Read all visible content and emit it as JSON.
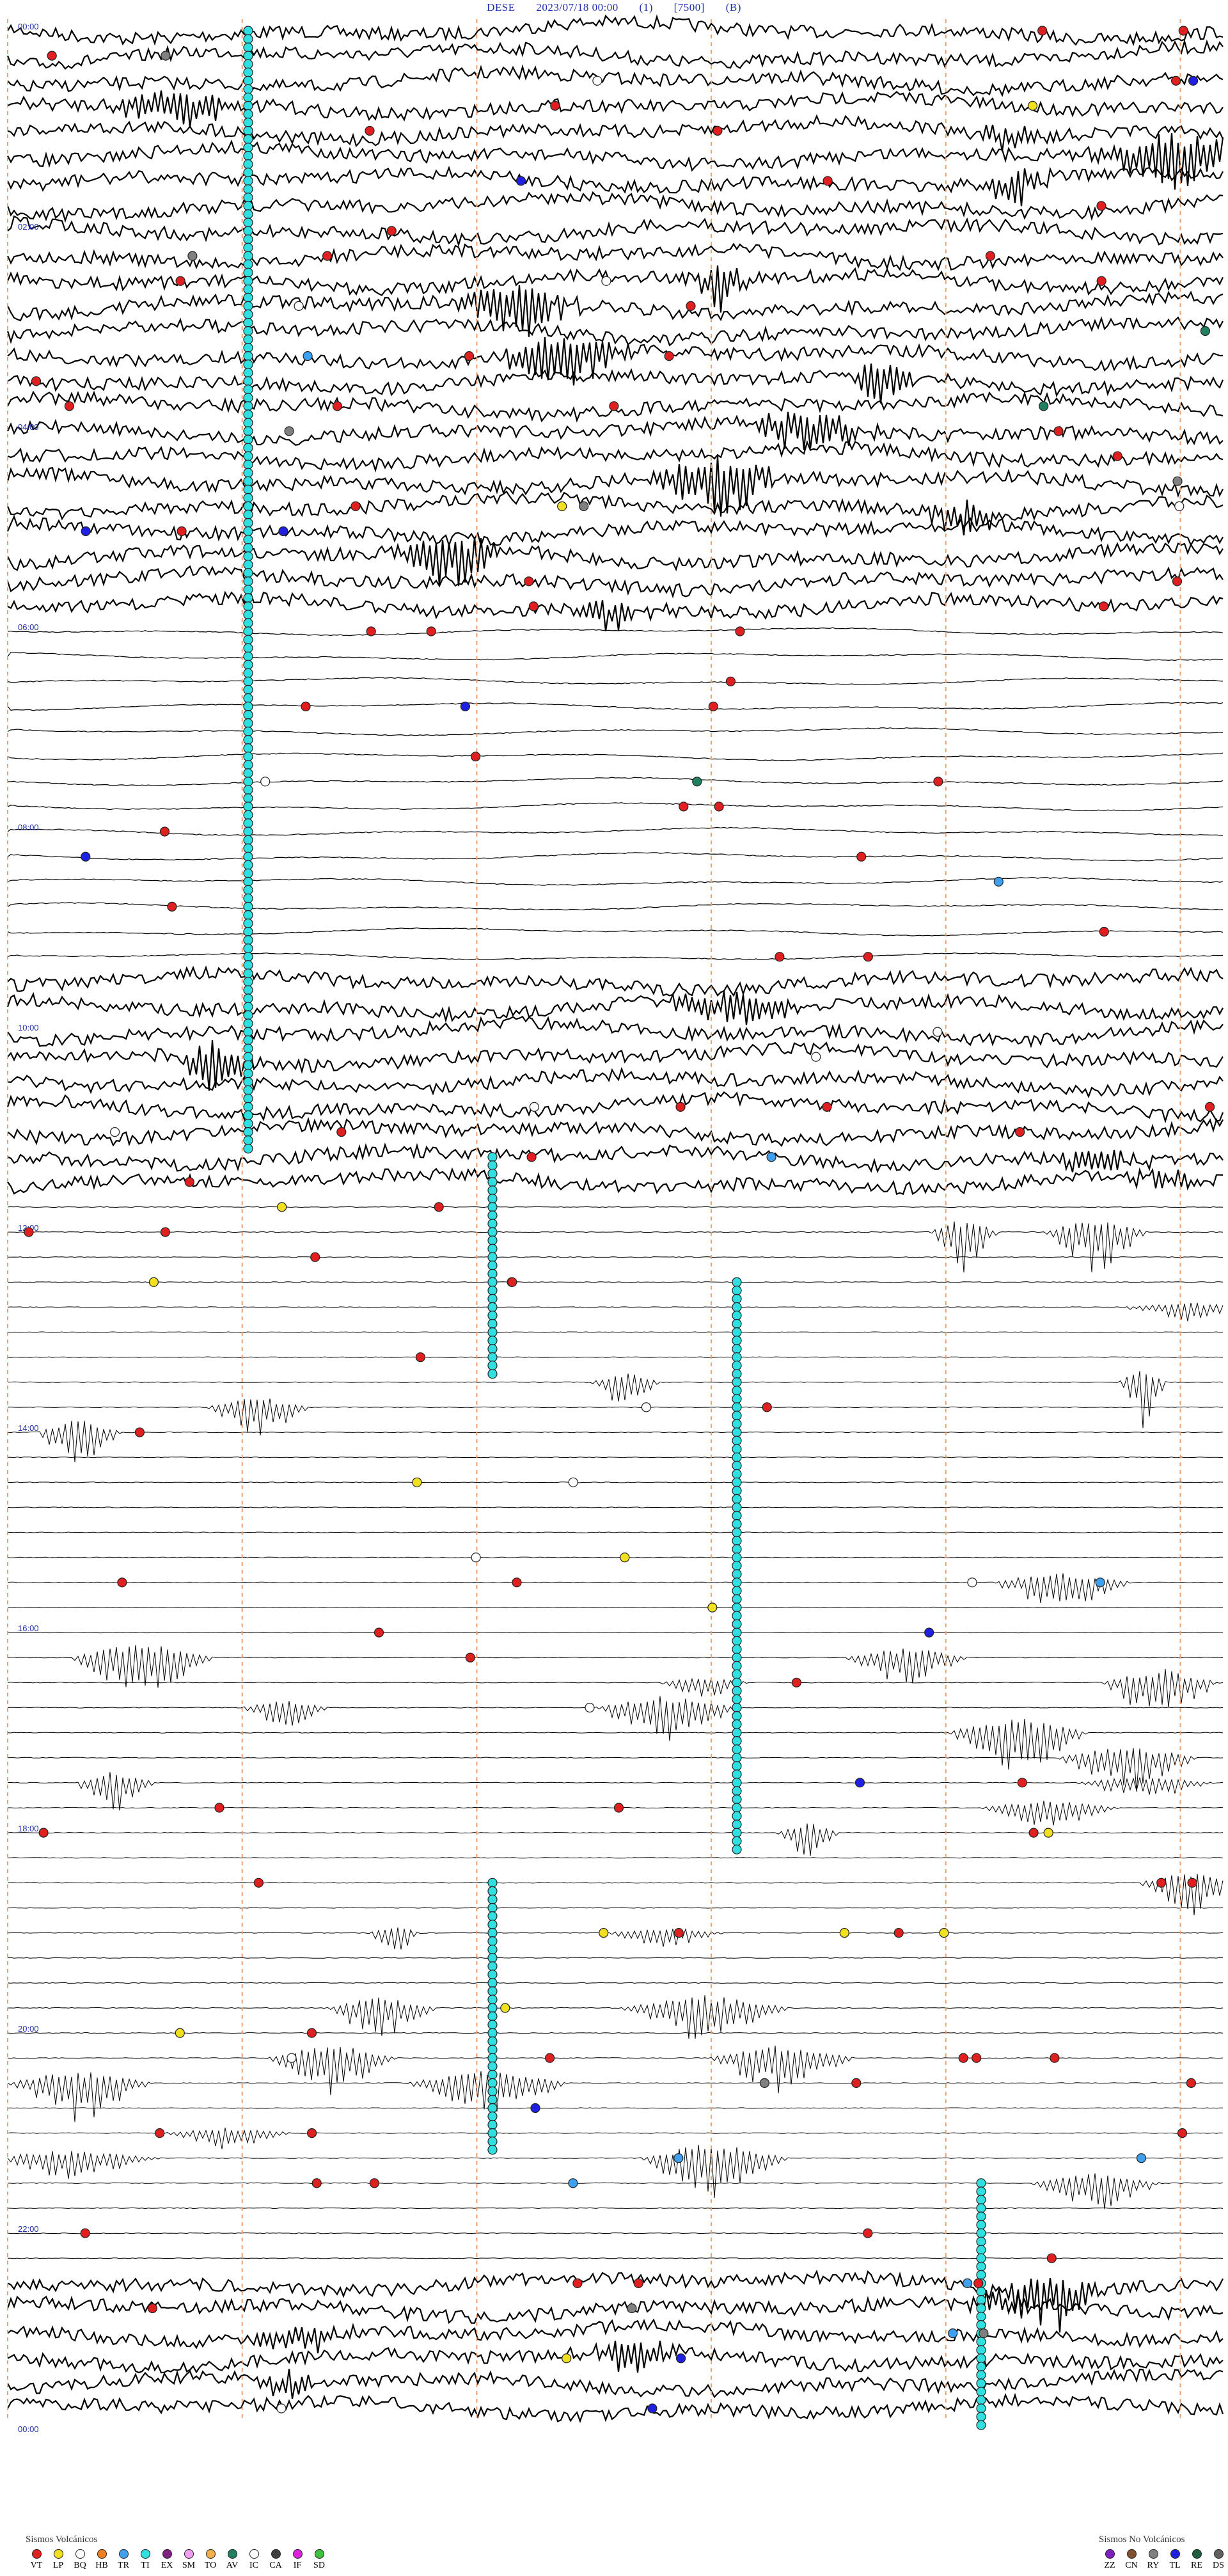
{
  "header": {
    "station": "DESE",
    "datetime": "2023/07/18 00:00",
    "channel": "(1)",
    "scale": "[7500]",
    "code": "(B)"
  },
  "time_labels": [
    "00:00",
    "02:00",
    "04:00",
    "06:00",
    "08:00",
    "10:00",
    "12:00",
    "14:00",
    "16:00",
    "18:00",
    "20:00",
    "22:00",
    "00:00"
  ],
  "legend_volcanic": {
    "title": "Sismos Volcánicos",
    "items": [
      {
        "code": "VT",
        "color": "#e02020"
      },
      {
        "code": "LP",
        "color": "#f0e020"
      },
      {
        "code": "BQ",
        "color": "#ffffff"
      },
      {
        "code": "HB",
        "color": "#f08020"
      },
      {
        "code": "TR",
        "color": "#40a0f0"
      },
      {
        "code": "TI",
        "color": "#30e0e0"
      },
      {
        "code": "EX",
        "color": "#802080"
      },
      {
        "code": "SM",
        "color": "#f0a0f0"
      },
      {
        "code": "TO",
        "color": "#f0b050"
      },
      {
        "code": "AV",
        "color": "#208060"
      },
      {
        "code": "IC",
        "color": "#ffffff"
      },
      {
        "code": "CA",
        "color": "#404040"
      },
      {
        "code": "IF",
        "color": "#e020e0"
      },
      {
        "code": "SD",
        "color": "#40c040"
      }
    ]
  },
  "legend_non_volcanic": {
    "title": "Sismos No Volcánicos",
    "items": [
      {
        "code": "ZZ",
        "color": "#8020c0"
      },
      {
        "code": "CN",
        "color": "#805030"
      },
      {
        "code": "RY",
        "color": "#808080"
      },
      {
        "code": "TL",
        "color": "#2020e0"
      },
      {
        "code": "RE",
        "color": "#206040"
      },
      {
        "code": "DS",
        "color": "#606060"
      }
    ]
  },
  "chart_data": {
    "type": "helicorder",
    "trace_count": 96,
    "minutes_per_trace": 15,
    "activity_hours": [
      {
        "start": 0,
        "end": 5.8,
        "level": "high"
      },
      {
        "start": 5.8,
        "end": 9.5,
        "level": "low"
      },
      {
        "start": 9.5,
        "end": 11.7,
        "level": "high"
      },
      {
        "start": 11.7,
        "end": 22.5,
        "level": "bursts"
      },
      {
        "start": 22.5,
        "end": 24,
        "level": "high"
      }
    ],
    "event_counts": {
      "VT": 95,
      "LP": 14,
      "BQ": 16,
      "TR": 9,
      "TI": 320,
      "TL": 11,
      "RY": 8,
      "AV": 3
    }
  }
}
